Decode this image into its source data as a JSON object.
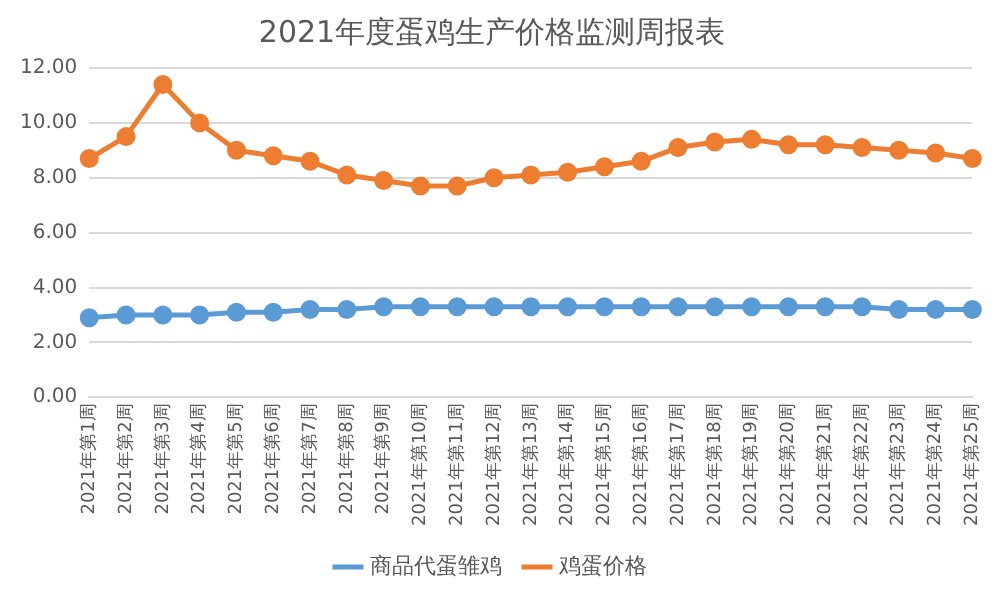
{
  "chart_data": {
    "type": "line",
    "title": "2021年度蛋鸡生产价格监测周报表",
    "categories": [
      "2021年第1周",
      "2021年第2周",
      "2021年第3周",
      "2021年第4周",
      "2021年第5周",
      "2021年第6周",
      "2021年第7周",
      "2021年第8周",
      "2021年第9周",
      "2021年第10周",
      "2021年第11周",
      "2021年第12周",
      "2021年第13周",
      "2021年第14周",
      "2021年第15周",
      "2021年第16周",
      "2021年第17周",
      "2021年第18周",
      "2021年第19周",
      "2021年第20周",
      "2021年第21周",
      "2021年第22周",
      "2021年第23周",
      "2021年第24周",
      "2021年第25周"
    ],
    "series": [
      {
        "name": "商品代蛋雏鸡",
        "color": "#5b9bd5",
        "values": [
          2.9,
          3.0,
          3.0,
          3.0,
          3.1,
          3.1,
          3.2,
          3.2,
          3.3,
          3.3,
          3.3,
          3.3,
          3.3,
          3.3,
          3.3,
          3.3,
          3.3,
          3.3,
          3.3,
          3.3,
          3.3,
          3.3,
          3.2,
          3.2,
          3.2
        ]
      },
      {
        "name": "鸡蛋价格",
        "color": "#ed7d31",
        "values": [
          8.7,
          9.5,
          11.4,
          10.0,
          9.0,
          8.8,
          8.6,
          8.1,
          7.9,
          7.7,
          7.7,
          8.0,
          8.1,
          8.2,
          8.4,
          8.6,
          9.1,
          9.3,
          9.4,
          9.2,
          9.2,
          9.1,
          9.0,
          8.9,
          8.7
        ]
      }
    ],
    "ylim": [
      0,
      12
    ],
    "yticks": [
      {
        "value": 0,
        "label": "0.00"
      },
      {
        "value": 2,
        "label": "2.00"
      },
      {
        "value": 4,
        "label": "4.00"
      },
      {
        "value": 6,
        "label": "6.00"
      },
      {
        "value": 8,
        "label": "8.00"
      },
      {
        "value": 10,
        "label": "10.00"
      },
      {
        "value": 12,
        "label": "12.00"
      }
    ],
    "grid": "y",
    "legend": "bottom",
    "marker": "circle",
    "line_style": "solid"
  }
}
